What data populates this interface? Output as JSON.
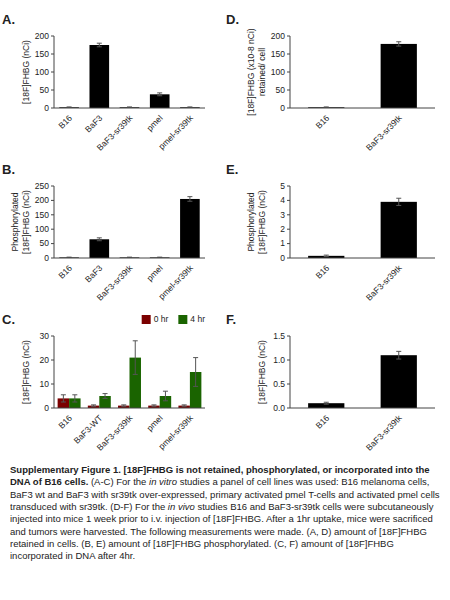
{
  "chart_data": [
    {
      "type": "bar",
      "title": "A.",
      "categories": [
        "B16",
        "BaF3",
        "BaF3-sr39tk",
        "pmel",
        "pmel-sr39tk"
      ],
      "values": [
        2,
        175,
        2,
        38,
        2
      ],
      "errors": [
        1,
        5,
        1,
        4,
        1
      ],
      "color": "#000000",
      "y_label": "[18F]FHBG (nCi)",
      "ylim": [
        0,
        200
      ],
      "yticks": [
        0,
        50,
        100,
        150,
        200
      ],
      "grid": false
    },
    {
      "type": "bar",
      "title": "B.",
      "categories": [
        "B16",
        "BaF3",
        "BaF3-sr39tk",
        "pmel",
        "pmel-sr39tk"
      ],
      "values": [
        2,
        65,
        2,
        2,
        205
      ],
      "errors": [
        1,
        5,
        1,
        1,
        8
      ],
      "color": "#000000",
      "y_label": "Phosphorylated\n[18F]FHBG (nCi)",
      "ylim": [
        0,
        250
      ],
      "yticks": [
        0,
        50,
        100,
        150,
        200,
        250
      ],
      "grid": false
    },
    {
      "type": "bar",
      "title": "C.",
      "categories": [
        "B16",
        "BaF3-WT",
        "BaF3-sr39tk",
        "pmel",
        "pmel-sr39tk"
      ],
      "series": [
        {
          "name": "0 hr",
          "color": "#7B0000",
          "values": [
            4,
            1,
            1,
            1,
            1
          ],
          "errors": [
            1.5,
            0.3,
            0.3,
            0.3,
            0.3
          ]
        },
        {
          "name": "4 hr",
          "color": "#1A6400",
          "values": [
            4,
            5,
            21,
            5,
            15
          ],
          "errors": [
            1.5,
            1,
            7,
            2,
            6
          ]
        }
      ],
      "y_label": "[18F]FHBG (nCi)",
      "ylim": [
        0,
        30
      ],
      "yticks": [
        0,
        10,
        20,
        30
      ],
      "legend": "upper right",
      "grid": false
    },
    {
      "type": "bar",
      "title": "D.",
      "categories": [
        "B16",
        "BaF3-sr39tk"
      ],
      "values": [
        2,
        178
      ],
      "errors": [
        1,
        6
      ],
      "color": "#000000",
      "y_label": "[18F]FHBG (x10-8 nCi)\nretained/ cell",
      "ylim": [
        0,
        200
      ],
      "yticks": [
        0,
        50,
        100,
        150,
        200
      ],
      "grid": false
    },
    {
      "type": "bar",
      "title": "E.",
      "categories": [
        "B16",
        "BaF3-sr39tk"
      ],
      "values": [
        0.15,
        3.9
      ],
      "errors": [
        0.05,
        0.25
      ],
      "color": "#000000",
      "y_label": "Phosphorylated\n[18F]FHBG (nCi)",
      "ylim": [
        0,
        5
      ],
      "yticks": [
        0,
        1,
        2,
        3,
        4,
        5
      ],
      "grid": false
    },
    {
      "type": "bar",
      "title": "F.",
      "categories": [
        "B16",
        "BaF3-sr39tk"
      ],
      "values": [
        0.1,
        1.1
      ],
      "errors": [
        0.02,
        0.08
      ],
      "color": "#000000",
      "y_label": "[18F]FHBG (nCi)",
      "ylim": [
        0,
        1.5
      ],
      "yticks": [
        {
          "value": 0,
          "label": "0.0"
        },
        0.5,
        {
          "value": 1,
          "label": "1.0"
        },
        1.5
      ],
      "grid": false
    }
  ],
  "caption": [
    "Supplementary Figure 1. [18F]FHBG is not retained, phosphorylated, or incorporated into the DNA of B16 cells.",
    " (A-C) For the ",
    "in vitro",
    " studies a panel of cell lines was used: B16 melanoma cells, BaF3 wt and BaF3 with sr39tk over-expressed, primary activated pmel T-cells and activated pmel cells transduced with sr39tk. (D-F) For the ",
    "in vivo",
    " studies B16 and BaF3-sr39tk cells were subcutaneously injected into mice 1 week prior to i.v. injection of [18F]FHBG. After a 1hr uptake, mice were sacrificed and tumors were harvested. The following measurements were made. (A, D) amount of [18F]FHBG retained in cells. (B, E) amount of [18F]FHBG phosphorylated. (C, F) amount of [18F]FHBG incorporated in DNA after 4hr."
  ]
}
